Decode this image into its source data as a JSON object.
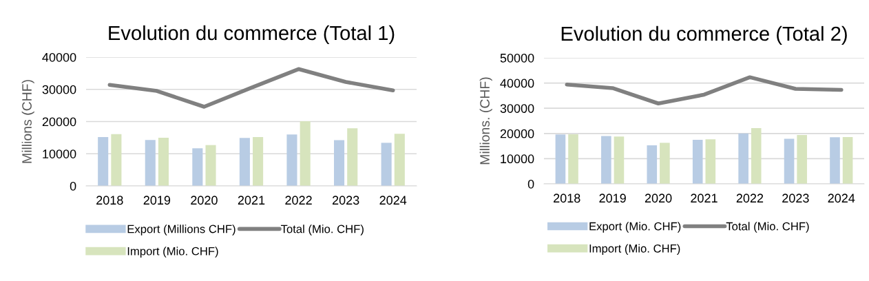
{
  "chart_data": [
    {
      "type": "bar",
      "title": "Evolution du commerce (Total 1)",
      "ylabel": "Millions (CHF)",
      "categories": [
        "2018",
        "2019",
        "2020",
        "2021",
        "2022",
        "2023",
        "2024"
      ],
      "ylim": [
        0,
        40000
      ],
      "yticks": [
        0,
        10000,
        20000,
        30000,
        40000
      ],
      "grid": "y",
      "legend": "bottom",
      "series": [
        {
          "name": "Export (Millions CHF)",
          "color": "#b8cce4",
          "values": [
            15200,
            14300,
            11700,
            14900,
            16000,
            14200,
            13400
          ]
        },
        {
          "name": "Import (Mio. CHF)",
          "color": "#d7e4bd",
          "values": [
            16100,
            15000,
            12700,
            15200,
            20100,
            17900,
            16200
          ]
        },
        {
          "name": "Total (Mio. CHF)",
          "type": "line",
          "color": "#808080",
          "values": [
            31400,
            29500,
            24600,
            30500,
            36300,
            32300,
            29700
          ]
        }
      ]
    },
    {
      "type": "bar",
      "title": "Evolution du commerce (Total 2)",
      "ylabel": "Millions. (CHF)",
      "categories": [
        "2018",
        "2019",
        "2020",
        "2021",
        "2022",
        "2023",
        "2024"
      ],
      "ylim": [
        0,
        50000
      ],
      "yticks": [
        0,
        10000,
        20000,
        30000,
        40000,
        50000
      ],
      "grid": "y",
      "legend": "bottom",
      "series": [
        {
          "name": "Export (Mio. CHF)",
          "color": "#b8cce4",
          "values": [
            19600,
            19000,
            15300,
            17500,
            20000,
            17900,
            18500
          ]
        },
        {
          "name": "Import (Mio. CHF)",
          "color": "#d7e4bd",
          "values": [
            19700,
            18800,
            16300,
            17700,
            22100,
            19400,
            18600
          ]
        },
        {
          "name": "Total (Mio. CHF)",
          "type": "line",
          "color": "#808080",
          "values": [
            39400,
            38000,
            31900,
            35400,
            42300,
            37700,
            37300
          ]
        }
      ]
    }
  ]
}
